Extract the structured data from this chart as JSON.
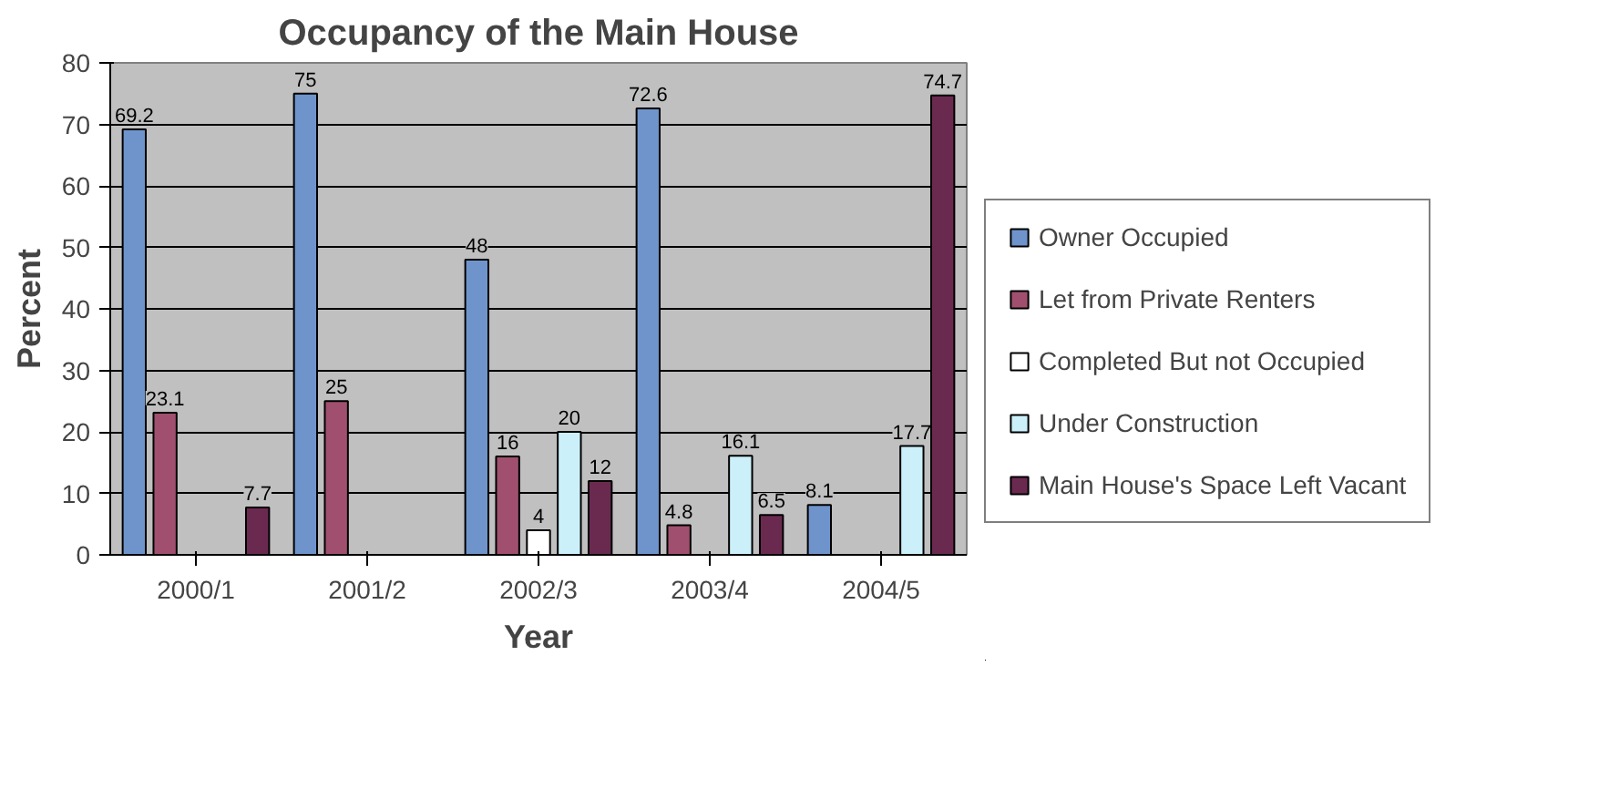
{
  "chart_data": {
    "type": "bar",
    "title": "Occupancy of the Main House",
    "xlabel": "Year",
    "ylabel": "Percent",
    "categories": [
      "2000/1",
      "2001/2",
      "2002/3",
      "2003/4",
      "2004/5"
    ],
    "series": [
      {
        "name": "Owner Occupied",
        "color": "#6f94cc",
        "values": [
          69.2,
          75,
          48,
          72.6,
          8.1
        ]
      },
      {
        "name": "Let from Private Renters",
        "color": "#a0506e",
        "values": [
          23.1,
          25,
          16,
          4.8,
          null
        ]
      },
      {
        "name": "Completed But not Occupied",
        "color": "#ffffff",
        "values": [
          null,
          null,
          4,
          null,
          null
        ]
      },
      {
        "name": "Under Construction",
        "color": "#ccf0fa",
        "values": [
          null,
          null,
          20,
          16.1,
          17.7
        ]
      },
      {
        "name": "Main House's Space Left Vacant",
        "color": "#6a2a50",
        "values": [
          7.7,
          null,
          12,
          6.5,
          74.7
        ]
      }
    ],
    "ylim": [
      0,
      80
    ],
    "yticks": [
      0,
      10,
      20,
      30,
      40,
      50,
      60,
      70,
      80
    ],
    "grid": "y",
    "legend": "right",
    "data_labels": true
  }
}
